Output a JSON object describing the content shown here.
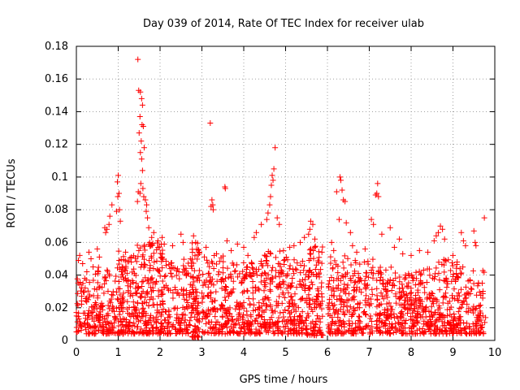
{
  "chart_data": {
    "type": "scatter",
    "title": "Day 039 of 2014, Rate Of TEC Index for receiver ulab",
    "xlabel": "GPS time / hours",
    "ylabel": "ROTI / TECUs",
    "xlim": [
      0,
      10
    ],
    "ylim": [
      0,
      0.18
    ],
    "xticks": [
      "0",
      "1",
      "2",
      "3",
      "4",
      "5",
      "6",
      "7",
      "8",
      "9",
      "10"
    ],
    "yticks": [
      "0",
      "0.02",
      "0.04",
      "0.06",
      "0.08",
      "0.1",
      "0.12",
      "0.14",
      "0.16",
      "0.18"
    ],
    "grid": true,
    "marker": "+",
    "color": "#ff0000",
    "series": [
      {
        "name": "ROTI",
        "points": [
          [
            1.47,
            0.172
          ],
          [
            1.49,
            0.153
          ],
          [
            1.53,
            0.152
          ],
          [
            1.56,
            0.148
          ],
          [
            1.58,
            0.144
          ],
          [
            1.52,
            0.137
          ],
          [
            1.6,
            0.131
          ],
          [
            1.57,
            0.132
          ],
          [
            1.5,
            0.127
          ],
          [
            1.55,
            0.122
          ],
          [
            1.62,
            0.118
          ],
          [
            1.53,
            0.115
          ],
          [
            1.56,
            0.111
          ],
          [
            1.58,
            0.104
          ],
          [
            1.54,
            0.096
          ],
          [
            1.59,
            0.093
          ],
          [
            1.52,
            0.09
          ],
          [
            1.61,
            0.088
          ],
          [
            1.65,
            0.086
          ],
          [
            1.68,
            0.083
          ],
          [
            1.67,
            0.079
          ],
          [
            1.7,
            0.075
          ],
          [
            1.73,
            0.069
          ],
          [
            1.46,
            0.085
          ],
          [
            1.48,
            0.091
          ],
          [
            1.0,
            0.101
          ],
          [
            0.98,
            0.097
          ],
          [
            1.02,
            0.09
          ],
          [
            0.99,
            0.088
          ],
          [
            1.03,
            0.08
          ],
          [
            0.96,
            0.079
          ],
          [
            1.05,
            0.073
          ],
          [
            0.85,
            0.083
          ],
          [
            0.8,
            0.076
          ],
          [
            0.78,
            0.071
          ],
          [
            0.73,
            0.068
          ],
          [
            0.68,
            0.069
          ],
          [
            0.7,
            0.066
          ],
          [
            3.2,
            0.133
          ],
          [
            3.24,
            0.086
          ],
          [
            3.26,
            0.083
          ],
          [
            3.27,
            0.08
          ],
          [
            3.22,
            0.082
          ],
          [
            3.55,
            0.094
          ],
          [
            3.56,
            0.093
          ],
          [
            4.75,
            0.118
          ],
          [
            4.72,
            0.105
          ],
          [
            4.68,
            0.101
          ],
          [
            4.7,
            0.098
          ],
          [
            4.66,
            0.095
          ],
          [
            4.64,
            0.088
          ],
          [
            4.62,
            0.083
          ],
          [
            4.58,
            0.078
          ],
          [
            4.55,
            0.074
          ],
          [
            4.42,
            0.071
          ],
          [
            4.3,
            0.066
          ],
          [
            4.25,
            0.063
          ],
          [
            4.8,
            0.075
          ],
          [
            4.85,
            0.071
          ],
          [
            6.3,
            0.1
          ],
          [
            6.32,
            0.098
          ],
          [
            6.35,
            0.092
          ],
          [
            6.38,
            0.086
          ],
          [
            6.42,
            0.085
          ],
          [
            6.22,
            0.091
          ],
          [
            6.28,
            0.074
          ],
          [
            6.45,
            0.072
          ],
          [
            6.55,
            0.066
          ],
          [
            7.2,
            0.096
          ],
          [
            7.18,
            0.09
          ],
          [
            7.15,
            0.089
          ],
          [
            7.22,
            0.088
          ],
          [
            7.05,
            0.074
          ],
          [
            7.1,
            0.071
          ],
          [
            7.3,
            0.065
          ],
          [
            7.5,
            0.069
          ],
          [
            7.72,
            0.062
          ],
          [
            8.7,
            0.07
          ],
          [
            8.65,
            0.066
          ],
          [
            8.75,
            0.068
          ],
          [
            8.6,
            0.064
          ],
          [
            8.8,
            0.062
          ],
          [
            8.55,
            0.061
          ],
          [
            9.2,
            0.066
          ],
          [
            9.25,
            0.061
          ],
          [
            9.3,
            0.058
          ],
          [
            9.5,
            0.067
          ],
          [
            9.53,
            0.06
          ],
          [
            9.55,
            0.058
          ],
          [
            9.75,
            0.075
          ],
          [
            9.7,
            0.035
          ],
          [
            9.78,
            0.014
          ],
          [
            9.76,
            0.011
          ],
          [
            5.6,
            0.073
          ],
          [
            5.65,
            0.071
          ],
          [
            5.58,
            0.068
          ],
          [
            5.55,
            0.065
          ],
          [
            5.7,
            0.062
          ],
          [
            5.45,
            0.063
          ],
          [
            5.35,
            0.06
          ],
          [
            5.2,
            0.058
          ],
          [
            5.1,
            0.057
          ],
          [
            4.95,
            0.055
          ],
          [
            2.5,
            0.065
          ],
          [
            2.55,
            0.06
          ],
          [
            2.8,
            0.064
          ],
          [
            2.85,
            0.06
          ],
          [
            2.3,
            0.058
          ],
          [
            2.1,
            0.059
          ],
          [
            2.05,
            0.063
          ],
          [
            1.95,
            0.061
          ],
          [
            1.85,
            0.066
          ],
          [
            1.8,
            0.063
          ],
          [
            0.05,
            0.049
          ],
          [
            0.08,
            0.052
          ],
          [
            0.15,
            0.047
          ],
          [
            0.3,
            0.054
          ],
          [
            0.35,
            0.05
          ],
          [
            0.5,
            0.056
          ],
          [
            0.55,
            0.051
          ],
          [
            0.2,
            0.038
          ],
          [
            0.25,
            0.042
          ],
          [
            0.4,
            0.045
          ],
          [
            3.1,
            0.057
          ],
          [
            3.35,
            0.053
          ],
          [
            3.6,
            0.061
          ],
          [
            3.7,
            0.055
          ],
          [
            3.85,
            0.059
          ],
          [
            4.0,
            0.057
          ],
          [
            4.1,
            0.052
          ],
          [
            6.1,
            0.06
          ],
          [
            6.15,
            0.055
          ],
          [
            6.6,
            0.058
          ],
          [
            6.7,
            0.054
          ],
          [
            6.9,
            0.056
          ],
          [
            7.6,
            0.057
          ],
          [
            7.8,
            0.053
          ],
          [
            8.0,
            0.052
          ],
          [
            8.2,
            0.055
          ],
          [
            8.4,
            0.054
          ],
          [
            9.0,
            0.052
          ],
          [
            9.1,
            0.048
          ]
        ],
        "dense_bands": [
          [
            0.0,
            0.45,
            0.004,
            0.038,
            90
          ],
          [
            0.45,
            1.0,
            0.004,
            0.045,
            120
          ],
          [
            1.0,
            1.45,
            0.004,
            0.055,
            140
          ],
          [
            1.45,
            2.1,
            0.004,
            0.06,
            200
          ],
          [
            2.1,
            2.75,
            0.004,
            0.05,
            140
          ],
          [
            2.75,
            2.95,
            0.002,
            0.06,
            90
          ],
          [
            3.0,
            3.6,
            0.004,
            0.052,
            140
          ],
          [
            3.6,
            4.2,
            0.004,
            0.048,
            140
          ],
          [
            4.2,
            4.9,
            0.004,
            0.055,
            170
          ],
          [
            4.9,
            5.5,
            0.004,
            0.052,
            150
          ],
          [
            5.5,
            5.9,
            0.003,
            0.058,
            120
          ],
          [
            6.0,
            6.6,
            0.004,
            0.052,
            140
          ],
          [
            6.6,
            7.1,
            0.004,
            0.05,
            110
          ],
          [
            7.15,
            7.6,
            0.004,
            0.045,
            110
          ],
          [
            7.6,
            8.1,
            0.004,
            0.042,
            120
          ],
          [
            8.1,
            8.6,
            0.004,
            0.045,
            120
          ],
          [
            8.6,
            9.1,
            0.004,
            0.05,
            120
          ],
          [
            9.1,
            9.75,
            0.004,
            0.045,
            130
          ]
        ]
      }
    ]
  }
}
